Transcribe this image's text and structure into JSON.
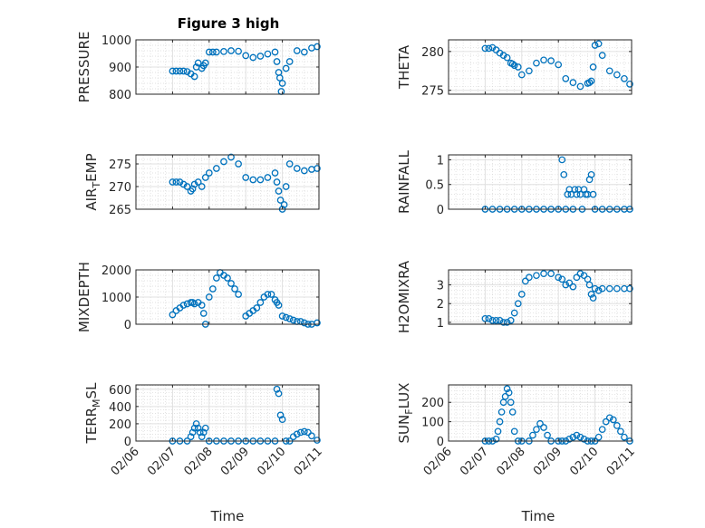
{
  "figure": {
    "title": "Figure 3 high"
  },
  "chart_data": [
    {
      "type": "scatter",
      "ylabel": "PRESSURE",
      "ylim": [
        800,
        1000
      ],
      "yticks": [
        800,
        900,
        1000
      ],
      "yticklabels": [
        "800",
        "900",
        "1000"
      ],
      "marker_color": "#0072BD",
      "grid": true,
      "minor_grid": true,
      "x": [
        7.0,
        7.1,
        7.2,
        7.3,
        7.4,
        7.5,
        7.6,
        7.65,
        7.7,
        7.8,
        7.85,
        7.9,
        8.0,
        8.1,
        8.2,
        8.4,
        8.6,
        8.8,
        9.0,
        9.2,
        9.4,
        9.6,
        9.8,
        9.85,
        9.9,
        9.93,
        9.97,
        10.0,
        10.1,
        10.2,
        10.4,
        10.6,
        10.8,
        10.95
      ],
      "y": [
        885,
        885,
        885,
        885,
        883,
        875,
        865,
        900,
        915,
        895,
        905,
        915,
        955,
        955,
        955,
        957,
        960,
        958,
        942,
        935,
        940,
        948,
        955,
        920,
        880,
        860,
        810,
        840,
        895,
        920,
        960,
        955,
        970,
        975
      ]
    },
    {
      "type": "scatter",
      "ylabel": "THETA",
      "ylim": [
        274.5,
        281.5
      ],
      "yticks": [
        275,
        280
      ],
      "yticklabels": [
        "275",
        "280"
      ],
      "marker_color": "#0072BD",
      "grid": true,
      "minor_grid": true,
      "x": [
        7.0,
        7.1,
        7.2,
        7.3,
        7.4,
        7.5,
        7.6,
        7.7,
        7.75,
        7.8,
        7.9,
        8.0,
        8.2,
        8.4,
        8.6,
        8.8,
        9.0,
        9.2,
        9.4,
        9.6,
        9.8,
        9.85,
        9.9,
        9.95,
        10.0,
        10.1,
        10.2,
        10.4,
        10.6,
        10.8,
        10.95
      ],
      "y": [
        280.4,
        280.4,
        280.5,
        280.2,
        279.8,
        279.5,
        279.2,
        278.5,
        278.4,
        278.2,
        278.0,
        277.0,
        277.5,
        278.5,
        278.9,
        278.8,
        278.3,
        276.5,
        276.0,
        275.5,
        275.9,
        276.0,
        276.2,
        278.0,
        280.8,
        281.0,
        279.5,
        277.5,
        277.0,
        276.5,
        275.8
      ]
    },
    {
      "type": "scatter",
      "ylabel": "AIR_TEMP",
      "ylabel_main": "AIR",
      "ylabel_sub": "T",
      "ylabel_rest": "EMP",
      "ylim": [
        265,
        277
      ],
      "yticks": [
        265,
        270,
        275
      ],
      "yticklabels": [
        "265",
        "270",
        "275"
      ],
      "marker_color": "#0072BD",
      "grid": true,
      "minor_grid": true,
      "x": [
        7.0,
        7.1,
        7.2,
        7.3,
        7.4,
        7.5,
        7.55,
        7.6,
        7.7,
        7.8,
        7.9,
        8.0,
        8.2,
        8.4,
        8.6,
        8.8,
        9.0,
        9.2,
        9.4,
        9.6,
        9.8,
        9.85,
        9.9,
        9.95,
        10.0,
        10.05,
        10.1,
        10.2,
        10.4,
        10.6,
        10.8,
        10.95
      ],
      "y": [
        271,
        271,
        271,
        270.5,
        270,
        269,
        269.5,
        270.5,
        271,
        270,
        272,
        273,
        274,
        275.5,
        276.5,
        275,
        272,
        271.5,
        271.5,
        272,
        273,
        271,
        269,
        267,
        265,
        266,
        270,
        275,
        274,
        273.5,
        273.8,
        274
      ]
    },
    {
      "type": "scatter",
      "ylabel": "RAINFALL",
      "ylim": [
        0,
        1.1
      ],
      "yticks": [
        0,
        0.5,
        1
      ],
      "yticklabels": [
        "0",
        "0.5",
        "1"
      ],
      "marker_color": "#0072BD",
      "grid": true,
      "minor_grid": true,
      "x": [
        7.0,
        7.2,
        7.4,
        7.6,
        7.8,
        8.0,
        8.2,
        8.4,
        8.6,
        8.8,
        9.0,
        9.1,
        9.15,
        9.2,
        9.25,
        9.3,
        9.35,
        9.4,
        9.45,
        9.5,
        9.55,
        9.6,
        9.65,
        9.7,
        9.75,
        9.8,
        9.85,
        9.9,
        9.95,
        10.0,
        10.2,
        10.4,
        10.6,
        10.8,
        10.95
      ],
      "y": [
        0,
        0,
        0,
        0,
        0,
        0,
        0,
        0,
        0,
        0,
        0,
        1.0,
        0.7,
        0,
        0.3,
        0.4,
        0.3,
        0,
        0.4,
        0.3,
        0.4,
        0.3,
        0,
        0.4,
        0.3,
        0.3,
        0.6,
        0.7,
        0.3,
        0,
        0,
        0,
        0,
        0,
        0
      ]
    },
    {
      "type": "scatter",
      "ylabel": "MIXDEPTH",
      "ylim": [
        0,
        2000
      ],
      "yticks": [
        0,
        1000,
        2000
      ],
      "yticklabels": [
        "0",
        "1000",
        "2000"
      ],
      "marker_color": "#0072BD",
      "grid": true,
      "minor_grid": true,
      "x": [
        7.0,
        7.1,
        7.2,
        7.3,
        7.4,
        7.5,
        7.55,
        7.6,
        7.7,
        7.8,
        7.85,
        7.9,
        8.0,
        8.1,
        8.2,
        8.3,
        8.4,
        8.5,
        8.6,
        8.7,
        8.8,
        9.0,
        9.1,
        9.2,
        9.3,
        9.4,
        9.5,
        9.6,
        9.7,
        9.8,
        9.85,
        9.9,
        10.0,
        10.1,
        10.2,
        10.3,
        10.4,
        10.5,
        10.6,
        10.7,
        10.8,
        10.95
      ],
      "y": [
        350,
        500,
        600,
        700,
        750,
        800,
        800,
        750,
        800,
        700,
        400,
        0,
        1000,
        1300,
        1700,
        1900,
        1800,
        1700,
        1500,
        1300,
        1100,
        300,
        400,
        500,
        600,
        800,
        1000,
        1100,
        1100,
        900,
        800,
        700,
        300,
        250,
        200,
        150,
        100,
        100,
        50,
        0,
        0,
        50
      ]
    },
    {
      "type": "scatter",
      "ylabel": "H2OMIXRA",
      "ylim": [
        0.9,
        3.8
      ],
      "yticks": [
        1,
        2,
        3
      ],
      "yticklabels": [
        "1",
        "2",
        "3"
      ],
      "marker_color": "#0072BD",
      "grid": true,
      "minor_grid": true,
      "x": [
        7.0,
        7.1,
        7.2,
        7.3,
        7.4,
        7.5,
        7.6,
        7.7,
        7.8,
        7.9,
        8.0,
        8.1,
        8.2,
        8.4,
        8.6,
        8.8,
        9.0,
        9.1,
        9.2,
        9.3,
        9.4,
        9.5,
        9.6,
        9.7,
        9.8,
        9.85,
        9.9,
        9.95,
        10.0,
        10.1,
        10.2,
        10.4,
        10.6,
        10.8,
        10.95
      ],
      "y": [
        1.2,
        1.2,
        1.1,
        1.1,
        1.1,
        1.0,
        1.0,
        1.1,
        1.5,
        2.0,
        2.5,
        3.2,
        3.4,
        3.5,
        3.6,
        3.6,
        3.4,
        3.3,
        3.0,
        3.1,
        2.9,
        3.4,
        3.6,
        3.5,
        3.3,
        3.0,
        2.5,
        2.3,
        2.8,
        2.7,
        2.8,
        2.8,
        2.8,
        2.8,
        2.8
      ]
    },
    {
      "type": "scatter",
      "ylabel": "TERR_MSL",
      "ylabel_main": "TERR",
      "ylabel_sub": "M",
      "ylabel_rest": "SL",
      "ylim": [
        0,
        650
      ],
      "yticks": [
        0,
        200,
        400,
        600
      ],
      "yticklabels": [
        "0",
        "200",
        "400",
        "600"
      ],
      "marker_color": "#0072BD",
      "grid": true,
      "minor_grid": true,
      "x": [
        7.0,
        7.2,
        7.4,
        7.5,
        7.55,
        7.6,
        7.65,
        7.7,
        7.75,
        7.8,
        7.85,
        7.9,
        8.0,
        8.2,
        8.4,
        8.6,
        8.8,
        9.0,
        9.2,
        9.4,
        9.6,
        9.8,
        9.85,
        9.9,
        9.95,
        10.0,
        10.1,
        10.2,
        10.3,
        10.4,
        10.5,
        10.6,
        10.7,
        10.8,
        10.95
      ],
      "y": [
        0,
        0,
        0,
        50,
        100,
        150,
        200,
        150,
        100,
        50,
        100,
        150,
        0,
        0,
        0,
        0,
        0,
        0,
        0,
        0,
        0,
        0,
        600,
        550,
        300,
        250,
        0,
        0,
        50,
        80,
        100,
        110,
        100,
        60,
        10
      ]
    },
    {
      "type": "scatter",
      "ylabel": "SUN_FLUX",
      "ylabel_main": "SUN",
      "ylabel_sub": "F",
      "ylabel_rest": "LUX",
      "ylim": [
        0,
        290
      ],
      "yticks": [
        0,
        100,
        200
      ],
      "yticklabels": [
        "0",
        "100",
        "200"
      ],
      "marker_color": "#0072BD",
      "grid": true,
      "minor_grid": true,
      "x": [
        7.0,
        7.1,
        7.2,
        7.3,
        7.35,
        7.4,
        7.45,
        7.5,
        7.55,
        7.6,
        7.65,
        7.7,
        7.75,
        7.8,
        7.9,
        8.0,
        8.2,
        8.3,
        8.4,
        8.5,
        8.6,
        8.7,
        8.8,
        9.0,
        9.1,
        9.2,
        9.3,
        9.4,
        9.5,
        9.6,
        9.7,
        9.8,
        9.9,
        10.0,
        10.1,
        10.2,
        10.3,
        10.4,
        10.5,
        10.6,
        10.7,
        10.8,
        10.95
      ],
      "y": [
        0,
        0,
        0,
        10,
        50,
        100,
        150,
        200,
        230,
        270,
        250,
        200,
        150,
        50,
        0,
        0,
        0,
        30,
        60,
        90,
        70,
        30,
        0,
        0,
        0,
        0,
        10,
        20,
        30,
        20,
        10,
        0,
        0,
        0,
        20,
        60,
        100,
        120,
        110,
        80,
        50,
        20,
        0
      ]
    }
  ],
  "xaxis": {
    "label": "Time",
    "xlim": [
      6,
      11
    ],
    "ticks": [
      6,
      7,
      8,
      9,
      10,
      11
    ],
    "ticklabels": [
      "02/06",
      "02/07",
      "02/08",
      "02/09",
      "02/10",
      "02/11"
    ]
  }
}
